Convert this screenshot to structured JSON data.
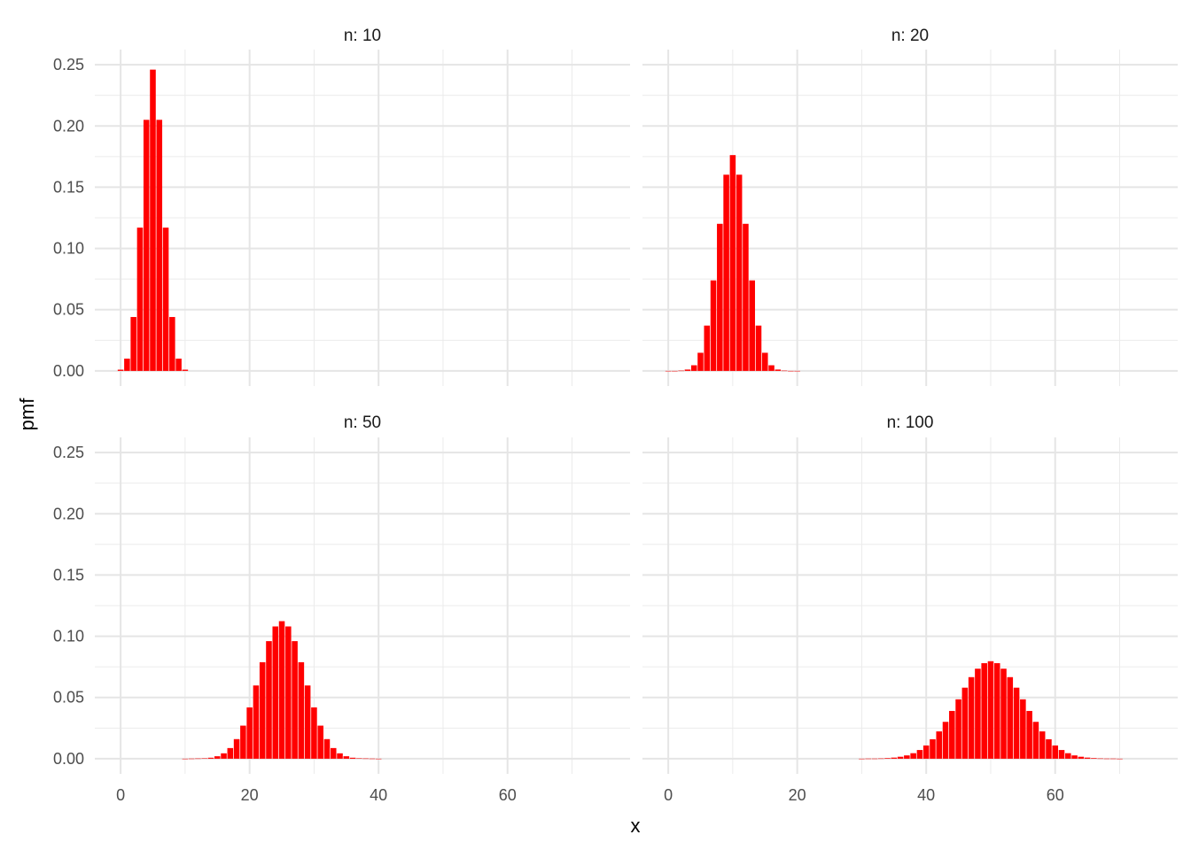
{
  "chart_data": {
    "type": "bar",
    "facet_layout": "2x2",
    "xlabel": "x",
    "ylabel": "pmf",
    "xlim": [
      -4,
      79
    ],
    "ylim": [
      0,
      0.25
    ],
    "x_ticks": [
      0,
      20,
      40,
      60
    ],
    "y_ticks": [
      0.0,
      0.05,
      0.1,
      0.15,
      0.2,
      0.25
    ],
    "bar_color": "#FF0000",
    "grid": true,
    "panels": [
      {
        "label": "n: 10",
        "x": [
          0,
          1,
          2,
          3,
          4,
          5,
          6,
          7,
          8,
          9,
          10
        ],
        "values": [
          0.001,
          0.01,
          0.044,
          0.117,
          0.205,
          0.246,
          0.205,
          0.117,
          0.044,
          0.01,
          0.001
        ]
      },
      {
        "label": "n: 20",
        "x": [
          0,
          1,
          2,
          3,
          4,
          5,
          6,
          7,
          8,
          9,
          10,
          11,
          12,
          13,
          14,
          15,
          16,
          17,
          18,
          19,
          20
        ],
        "values": [
          0.0,
          0.0,
          0.0002,
          0.0011,
          0.0046,
          0.0148,
          0.037,
          0.0739,
          0.1201,
          0.1602,
          0.1762,
          0.1602,
          0.1201,
          0.0739,
          0.037,
          0.0148,
          0.0046,
          0.0011,
          0.0002,
          0.0,
          0.0
        ]
      },
      {
        "label": "n: 50",
        "x": [
          10,
          11,
          12,
          13,
          14,
          15,
          16,
          17,
          18,
          19,
          20,
          21,
          22,
          23,
          24,
          25,
          26,
          27,
          28,
          29,
          30,
          31,
          32,
          33,
          34,
          35,
          36,
          37,
          38,
          39,
          40
        ],
        "values": [
          0.0,
          0.0001,
          0.0002,
          0.0003,
          0.0008,
          0.002,
          0.0044,
          0.0087,
          0.016,
          0.027,
          0.0419,
          0.0598,
          0.0788,
          0.096,
          0.108,
          0.1123,
          0.108,
          0.096,
          0.0788,
          0.0598,
          0.0419,
          0.027,
          0.016,
          0.0087,
          0.0044,
          0.002,
          0.0008,
          0.0003,
          0.0002,
          0.0001,
          0.0
        ]
      },
      {
        "label": "n: 100",
        "x": [
          30,
          31,
          32,
          33,
          34,
          35,
          36,
          37,
          38,
          39,
          40,
          41,
          42,
          43,
          44,
          45,
          46,
          47,
          48,
          49,
          50,
          51,
          52,
          53,
          54,
          55,
          56,
          57,
          58,
          59,
          60,
          61,
          62,
          63,
          64,
          65,
          66,
          67,
          68,
          69,
          70
        ],
        "values": [
          0.0,
          0.0001,
          0.0001,
          0.0002,
          0.0005,
          0.0009,
          0.0016,
          0.0027,
          0.0045,
          0.0071,
          0.0108,
          0.0159,
          0.0223,
          0.0301,
          0.039,
          0.0485,
          0.058,
          0.0666,
          0.0735,
          0.078,
          0.0796,
          0.078,
          0.0735,
          0.0666,
          0.058,
          0.0485,
          0.039,
          0.0301,
          0.0223,
          0.0159,
          0.0108,
          0.0071,
          0.0045,
          0.0027,
          0.0016,
          0.0009,
          0.0005,
          0.0002,
          0.0001,
          0.0001,
          0.0
        ]
      }
    ]
  }
}
